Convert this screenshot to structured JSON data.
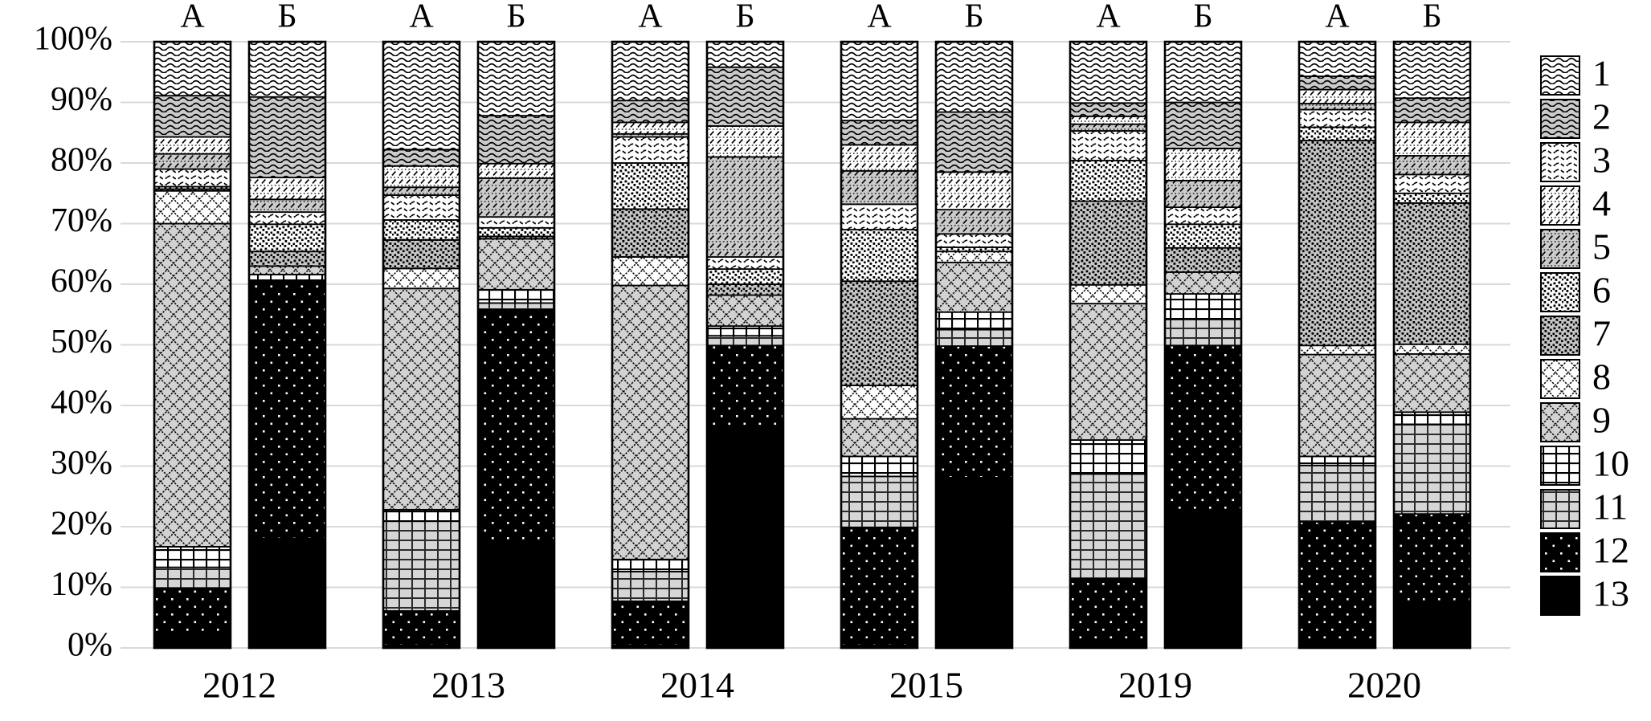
{
  "colors": {
    "background": "#ffffff",
    "grid_line": "#d9d9d9",
    "bar_border": "#000000",
    "gray_fill": "#cccccc",
    "text": "#000000"
  },
  "chart_data": {
    "type": "bar",
    "subtype": "stacked-100-percent",
    "title": "",
    "xlabel": "",
    "ylabel": "",
    "ylim": [
      0,
      100
    ],
    "grid": "horizontal",
    "legend_position": "right",
    "y_tick_labels": [
      "0%",
      "10%",
      "20%",
      "30%",
      "40%",
      "50%",
      "60%",
      "70%",
      "80%",
      "90%",
      "100%"
    ],
    "x_groups": [
      "2012",
      "2013",
      "2014",
      "2015",
      "2019",
      "2020"
    ],
    "bar_labels": [
      "А",
      "Б"
    ],
    "legend": [
      {
        "id": "1",
        "pattern": "white-wave"
      },
      {
        "id": "2",
        "pattern": "gray-wave"
      },
      {
        "id": "3",
        "pattern": "white-wave-dashed"
      },
      {
        "id": "4",
        "pattern": "white-diagonal-dash"
      },
      {
        "id": "5",
        "pattern": "gray-diagonal-dash"
      },
      {
        "id": "6",
        "pattern": "white-black-speckle"
      },
      {
        "id": "7",
        "pattern": "gray-black-speckle"
      },
      {
        "id": "8",
        "pattern": "white-crosshatch"
      },
      {
        "id": "9",
        "pattern": "gray-crosshatch"
      },
      {
        "id": "10",
        "pattern": "white-grid"
      },
      {
        "id": "11",
        "pattern": "gray-grid"
      },
      {
        "id": "12",
        "pattern": "black-white-dots"
      },
      {
        "id": "13",
        "pattern": "solid-black"
      }
    ],
    "stack_order_bottom_to_top": [
      "13",
      "12",
      "11",
      "10",
      "9",
      "8",
      "7",
      "6",
      "3",
      "5",
      "4",
      "2",
      "1"
    ],
    "bars": [
      {
        "year": "2012",
        "label": "А",
        "values": {
          "1": 8.9,
          "2": 6.8,
          "3": 2.9,
          "4": 2.8,
          "5": 2.5,
          "6": 0.4,
          "7": 0.3,
          "8": 5.4,
          "9": 53.3,
          "10": 3.4,
          "11": 3.4,
          "12": 8.1,
          "13": 1.8
        }
      },
      {
        "year": "2012",
        "label": "Б",
        "values": {
          "1": 9.1,
          "2": 13.3,
          "3": 2.0,
          "4": 3.6,
          "5": 2.1,
          "6": 4.5,
          "7": 2.4,
          "8": 0,
          "9": 1.4,
          "10": 1.1,
          "11": 0,
          "12": 42.4,
          "13": 18.1
        }
      },
      {
        "year": "2013",
        "label": "А",
        "values": {
          "1": 17.8,
          "2": 2.7,
          "3": 4.1,
          "4": 3.5,
          "5": 1.3,
          "6": 3.3,
          "7": 4.7,
          "8": 3.3,
          "9": 36.5,
          "10": 1.9,
          "11": 14.8,
          "12": 5.6,
          "13": 0.5
        }
      },
      {
        "year": "2013",
        "label": "Б",
        "values": {
          "1": 12.2,
          "2": 7.9,
          "3": 1.8,
          "4": 2.4,
          "5": 6.4,
          "6": 1.4,
          "7": 0.4,
          "8": 0,
          "9": 8.4,
          "10": 2.2,
          "11": 1.1,
          "12": 38.6,
          "13": 17.2
        }
      },
      {
        "year": "2014",
        "label": "А",
        "values": {
          "1": 9.7,
          "2": 3.6,
          "3": 4.3,
          "4": 1.9,
          "5": 0.5,
          "6": 7.6,
          "7": 7.9,
          "8": 4.7,
          "9": 45.2,
          "10": 2.0,
          "11": 4.9,
          "12": 7.2,
          "13": 0.5
        }
      },
      {
        "year": "2014",
        "label": "Б",
        "values": {
          "1": 4.2,
          "2": 9.7,
          "3": 2.0,
          "4": 5.1,
          "5": 16.5,
          "6": 2.5,
          "7": 1.8,
          "8": 0,
          "9": 5.1,
          "10": 1.6,
          "11": 1.6,
          "12": 14.1,
          "13": 35.8
        }
      },
      {
        "year": "2015",
        "label": "А",
        "values": {
          "1": 13.0,
          "2": 4.0,
          "3": 4.2,
          "4": 4.3,
          "5": 5.5,
          "6": 8.5,
          "7": 17.2,
          "8": 5.5,
          "9": 6.2,
          "10": 3.3,
          "11": 8.4,
          "12": 19.4,
          "13": 0.5
        }
      },
      {
        "year": "2015",
        "label": "Б",
        "values": {
          "1": 11.6,
          "2": 9.9,
          "3": 2.2,
          "4": 6.2,
          "5": 4.0,
          "6": 0.7,
          "7": 0,
          "8": 1.8,
          "9": 8.2,
          "10": 2.9,
          "11": 2.7,
          "12": 21.7,
          "13": 28.1
        }
      },
      {
        "year": "2019",
        "label": "А",
        "values": {
          "1": 10.1,
          "2": 2.2,
          "3": 4.9,
          "4": 1.3,
          "5": 1.1,
          "6": 6.7,
          "7": 13.8,
          "8": 3.1,
          "9": 22.5,
          "10": 5.6,
          "11": 17.2,
          "12": 10.2,
          "13": 1.3
        }
      },
      {
        "year": "2019",
        "label": "Б",
        "values": {
          "1": 10.0,
          "2": 7.6,
          "3": 2.8,
          "4": 5.3,
          "5": 4.4,
          "6": 3.9,
          "7": 4.0,
          "8": 0,
          "9": 3.6,
          "10": 4.2,
          "11": 4.3,
          "12": 27.3,
          "13": 22.6
        }
      },
      {
        "year": "2020",
        "label": "А",
        "values": {
          "1": 5.7,
          "2": 2.2,
          "3": 2.9,
          "4": 2.3,
          "5": 1.0,
          "6": 2.2,
          "7": 33.8,
          "8": 1.5,
          "9": 16.8,
          "10": 1.5,
          "11": 9.3,
          "12": 19.6,
          "13": 1.2
        }
      },
      {
        "year": "2020",
        "label": "Б",
        "values": {
          "1": 9.3,
          "2": 4.0,
          "3": 3.1,
          "4": 5.5,
          "5": 3.1,
          "6": 1.6,
          "7": 23.3,
          "8": 1.6,
          "9": 9.6,
          "10": 2.0,
          "11": 14.8,
          "12": 14.8,
          "13": 7.3
        }
      }
    ]
  }
}
